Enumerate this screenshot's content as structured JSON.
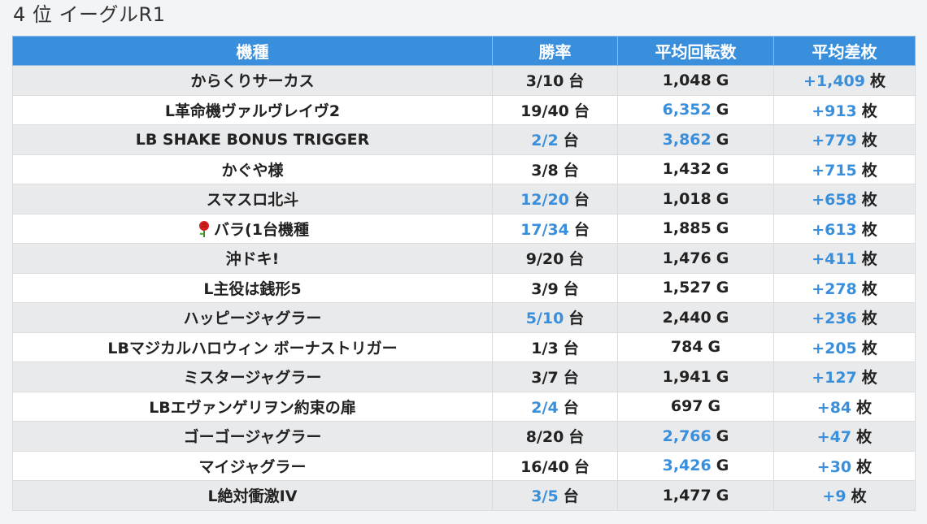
{
  "title": "4 位 イーグルR1",
  "headers": [
    "機種",
    "勝率",
    "平均回転数",
    "平均差枚"
  ],
  "units": {
    "win": "台",
    "spin": "G",
    "diff": "枚"
  },
  "rows": [
    {
      "name": "からくりサーカス",
      "icon": "",
      "win": "3/10",
      "win_hl": false,
      "spin": "1,048",
      "spin_hl": false,
      "diff": "+1,409"
    },
    {
      "name": "L革命機ヴァルヴレイヴ2",
      "icon": "",
      "win": "19/40",
      "win_hl": false,
      "spin": "6,352",
      "spin_hl": true,
      "diff": "+913"
    },
    {
      "name": "LB SHAKE BONUS TRIGGER",
      "icon": "",
      "win": "2/2",
      "win_hl": true,
      "spin": "3,862",
      "spin_hl": true,
      "diff": "+779"
    },
    {
      "name": "かぐや様",
      "icon": "",
      "win": "3/8",
      "win_hl": false,
      "spin": "1,432",
      "spin_hl": false,
      "diff": "+715"
    },
    {
      "name": "スマスロ北斗",
      "icon": "",
      "win": "12/20",
      "win_hl": true,
      "spin": "1,018",
      "spin_hl": false,
      "diff": "+658"
    },
    {
      "name": "バラ(1台機種",
      "icon": "rose-icon",
      "win": "17/34",
      "win_hl": true,
      "spin": "1,885",
      "spin_hl": false,
      "diff": "+613"
    },
    {
      "name": "沖ドキ!",
      "icon": "",
      "win": "9/20",
      "win_hl": false,
      "spin": "1,476",
      "spin_hl": false,
      "diff": "+411"
    },
    {
      "name": "L主役は銭形5",
      "icon": "",
      "win": "3/9",
      "win_hl": false,
      "spin": "1,527",
      "spin_hl": false,
      "diff": "+278"
    },
    {
      "name": "ハッピージャグラー",
      "icon": "",
      "win": "5/10",
      "win_hl": true,
      "spin": "2,440",
      "spin_hl": false,
      "diff": "+236"
    },
    {
      "name": "LBマジカルハロウィン ボーナストリガー",
      "icon": "",
      "win": "1/3",
      "win_hl": false,
      "spin": "784",
      "spin_hl": false,
      "diff": "+205"
    },
    {
      "name": "ミスタージャグラー",
      "icon": "",
      "win": "3/7",
      "win_hl": false,
      "spin": "1,941",
      "spin_hl": false,
      "diff": "+127"
    },
    {
      "name": "LBエヴァンゲリヲン約束の扉",
      "icon": "",
      "win": "2/4",
      "win_hl": true,
      "spin": "697",
      "spin_hl": false,
      "diff": "+84"
    },
    {
      "name": "ゴーゴージャグラー",
      "icon": "",
      "win": "8/20",
      "win_hl": false,
      "spin": "2,766",
      "spin_hl": true,
      "diff": "+47"
    },
    {
      "name": "マイジャグラー",
      "icon": "",
      "win": "16/40",
      "win_hl": false,
      "spin": "3,426",
      "spin_hl": true,
      "diff": "+30"
    },
    {
      "name": "L絶対衝激IV",
      "icon": "",
      "win": "3/5",
      "win_hl": true,
      "spin": "1,477",
      "spin_hl": false,
      "diff": "+9"
    }
  ],
  "colors": {
    "header_bg": "#3a8fdc",
    "highlight": "#3a8fdc",
    "row_alt": "#e9eaec"
  }
}
